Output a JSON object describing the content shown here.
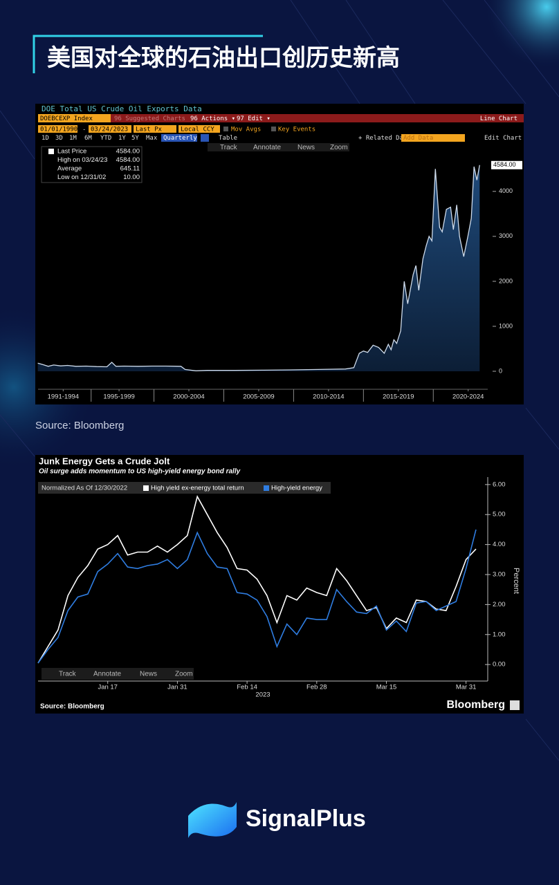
{
  "title": "美国对全球的石油出口创历史新高",
  "source": "Source:  Bloomberg",
  "brand": "SignalPlus",
  "chart_data": [
    {
      "type": "line",
      "title": "DOE Total US Crude Oil Exports Data",
      "ticker": "DOEBCEXP Index",
      "menu": [
        "96 Suggested Charts",
        "96 Actions ▾",
        "97 Edit ▾"
      ],
      "chart_kind": "Line Chart",
      "date_range": [
        "01/01/1990",
        "-",
        "03/24/2023"
      ],
      "fields": [
        "Last Px",
        "Local CCY",
        "Mov Avgs",
        "Key Events"
      ],
      "periods": [
        "1D",
        "3D",
        "1M",
        "6M",
        "YTD",
        "1Y",
        "5Y",
        "Max"
      ],
      "frequency": "Quarterly ▾",
      "view": "Table",
      "related": "+ Related Data",
      "add": "Add Data",
      "edit": "Edit Chart",
      "tools": [
        "Track",
        "Annotate",
        "News",
        "Zoom"
      ],
      "stats": [
        {
          "label": "Last Price",
          "value": "4584.00"
        },
        {
          "label": "High on 03/24/23",
          "value": "4584.00"
        },
        {
          "label": "Average",
          "value": "645.11"
        },
        {
          "label": "Low on 12/31/02",
          "value": "10.00"
        }
      ],
      "color": "#cfdcec",
      "x": [
        1991.68,
        1992.03,
        1992.43,
        1992.82,
        1993.32,
        1993.81,
        1994.41,
        1995.15,
        1995.89,
        1996.63,
        1996.98,
        1997.28,
        1997.87,
        1998.86,
        1999.85,
        2000.84,
        2001.93,
        2002.23,
        2003.0,
        2003.81,
        2005.79,
        2007.77,
        2009.75,
        2011.73,
        2013.71,
        2014.31,
        2014.7,
        2015.0,
        2015.3,
        2015.69,
        2016.09,
        2016.49,
        2016.78,
        2016.98,
        2017.18,
        2017.38,
        2017.67,
        2017.92,
        2018.17,
        2018.56,
        2018.76,
        2018.96,
        2019.26,
        2019.5,
        2019.7,
        2019.9,
        2020.15,
        2020.45,
        2020.64,
        2020.94,
        2021.24,
        2021.44,
        2021.68,
        2021.88,
        2022.18,
        2022.48,
        2022.72,
        2022.92,
        2023.12,
        2023.32
      ],
      "values": [
        180,
        150,
        110,
        140,
        120,
        130,
        110,
        115,
        105,
        100,
        200,
        110,
        115,
        110,
        115,
        115,
        110,
        40,
        10,
        20,
        20,
        25,
        30,
        40,
        50,
        80,
        400,
        450,
        420,
        580,
        530,
        400,
        600,
        480,
        700,
        620,
        900,
        2000,
        1500,
        2150,
        2350,
        1800,
        2500,
        2800,
        3000,
        2900,
        4500,
        3200,
        3100,
        3600,
        3650,
        3150,
        3700,
        3000,
        2550,
        3000,
        3400,
        4550,
        4250,
        4584
      ],
      "xlim": [
        1991.7,
        2023.9
      ],
      "xticks": [
        {
          "value": 1993.5,
          "label": "1991-1994"
        },
        {
          "value": 1997.5,
          "label": "1995-1999"
        },
        {
          "value": 2002.5,
          "label": "2000-2004"
        },
        {
          "value": 2007.5,
          "label": "2005-2009"
        },
        {
          "value": 2012.5,
          "label": "2010-2014"
        },
        {
          "value": 2017.5,
          "label": "2015-2019"
        },
        {
          "value": 2022.5,
          "label": "2020-2024"
        }
      ],
      "ylim": [
        -400,
        4950
      ],
      "yticks": [
        0,
        1000,
        2000,
        3000,
        4000
      ]
    },
    {
      "type": "line",
      "title": "Junk Energy Gets a Crude Jolt",
      "subtitle": "Oil surge adds momentum to US high-yield energy bond rally",
      "legend_note": "Normalized As Of 12/30/2022",
      "categories": [
        null,
        null,
        null,
        null,
        null,
        null,
        null,
        "Jan 17",
        null,
        null,
        null,
        null,
        null,
        null,
        "Jan 31",
        null,
        null,
        null,
        null,
        null,
        null,
        "Feb 14",
        null,
        null,
        null,
        null,
        null,
        null,
        "Feb 28",
        null,
        null,
        null,
        null,
        null,
        null,
        "Mar 15",
        null,
        null,
        null,
        null,
        null,
        null,
        null,
        "Mar 31",
        null
      ],
      "x_group_label": "2023",
      "y_label": "Percent",
      "ylim": [
        -0.55,
        6.25
      ],
      "yticks": [
        {
          "value": 0,
          "label": "0.00"
        },
        {
          "value": 1,
          "label": "1.00"
        },
        {
          "value": 2,
          "label": "2.00"
        },
        {
          "value": 3,
          "label": "3.00"
        },
        {
          "value": 4,
          "label": "4.00"
        },
        {
          "value": 5,
          "label": "5.00"
        },
        {
          "value": 6,
          "label": "6.00"
        }
      ],
      "series": [
        {
          "name": "High yield ex-energy total return",
          "color": "#ffffff",
          "values": [
            0.05,
            0.6,
            1.15,
            2.3,
            2.9,
            3.3,
            3.85,
            4.0,
            4.3,
            3.65,
            3.75,
            3.75,
            3.95,
            3.75,
            4.0,
            4.3,
            5.6,
            5.0,
            4.4,
            3.9,
            3.2,
            3.15,
            2.85,
            2.3,
            1.4,
            2.3,
            2.15,
            2.55,
            2.4,
            2.3,
            3.2,
            2.8,
            2.3,
            1.8,
            1.9,
            1.2,
            1.55,
            1.4,
            2.15,
            2.1,
            1.85,
            1.8,
            2.6,
            3.5,
            3.85
          ]
        },
        {
          "name": "High-yield energy",
          "color": "#2f7de1",
          "values": [
            0.05,
            0.5,
            0.9,
            1.8,
            2.25,
            2.35,
            3.1,
            3.35,
            3.7,
            3.25,
            3.2,
            3.3,
            3.35,
            3.5,
            3.2,
            3.5,
            4.4,
            3.7,
            3.25,
            3.2,
            2.4,
            2.35,
            2.15,
            1.6,
            0.6,
            1.35,
            1.0,
            1.55,
            1.5,
            1.5,
            2.5,
            2.1,
            1.75,
            1.7,
            1.95,
            1.15,
            1.45,
            1.1,
            2.05,
            2.1,
            1.8,
            1.95,
            2.1,
            3.2,
            4.5
          ]
        }
      ],
      "tools": [
        "Track",
        "Annotate",
        "News",
        "Zoom"
      ],
      "source": "Source: Bloomberg",
      "brand": "Bloomberg"
    }
  ]
}
